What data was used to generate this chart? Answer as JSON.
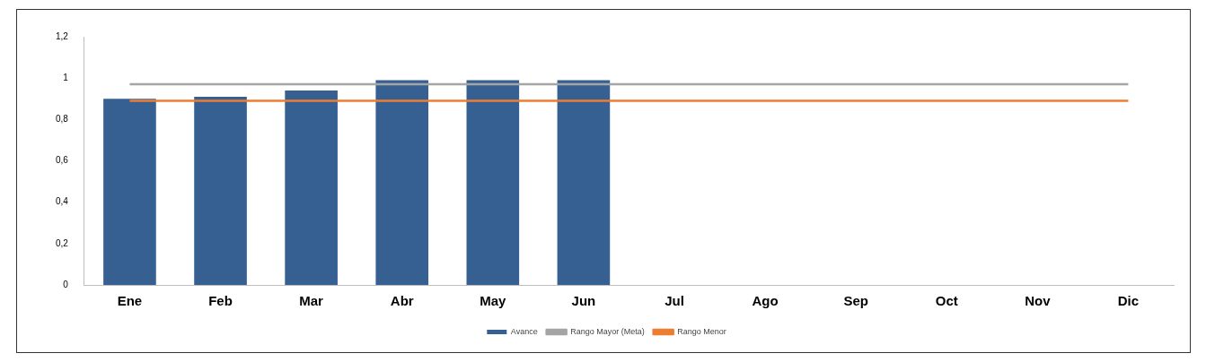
{
  "chart_data": {
    "type": "bar",
    "categories": [
      "Ene",
      "Feb",
      "Mar",
      "Abr",
      "May",
      "Jun",
      "Jul",
      "Ago",
      "Sep",
      "Oct",
      "Nov",
      "Dic"
    ],
    "series": [
      {
        "name": "Avance",
        "color": "#376092",
        "values": [
          0.9,
          0.91,
          0.94,
          0.99,
          0.99,
          0.99,
          null,
          null,
          null,
          null,
          null,
          null
        ]
      },
      {
        "name": "Rango Mayor (Meta)",
        "type": "line",
        "color": "#a5a5a5",
        "values": [
          0.97,
          0.97,
          0.97,
          0.97,
          0.97,
          0.97,
          0.97,
          0.97,
          0.97,
          0.97,
          0.97,
          0.97
        ]
      },
      {
        "name": "Rango Menor",
        "type": "line",
        "color": "#ed7d31",
        "values": [
          0.89,
          0.89,
          0.89,
          0.89,
          0.89,
          0.89,
          0.89,
          0.89,
          0.89,
          0.89,
          0.89,
          0.89
        ]
      }
    ],
    "ylim": [
      0,
      1.2
    ],
    "yticks": [
      0,
      {
        "value": 0.2,
        "label": "0,2"
      },
      {
        "value": 0.4,
        "label": "0,4"
      },
      {
        "value": 0.6,
        "label": "0,6"
      },
      {
        "value": 0.8,
        "label": "0,8"
      },
      1,
      {
        "value": 1.2,
        "label": "1,2"
      }
    ],
    "grid": false,
    "legend": "bottom",
    "marker": "none",
    "line_style": "solid"
  }
}
